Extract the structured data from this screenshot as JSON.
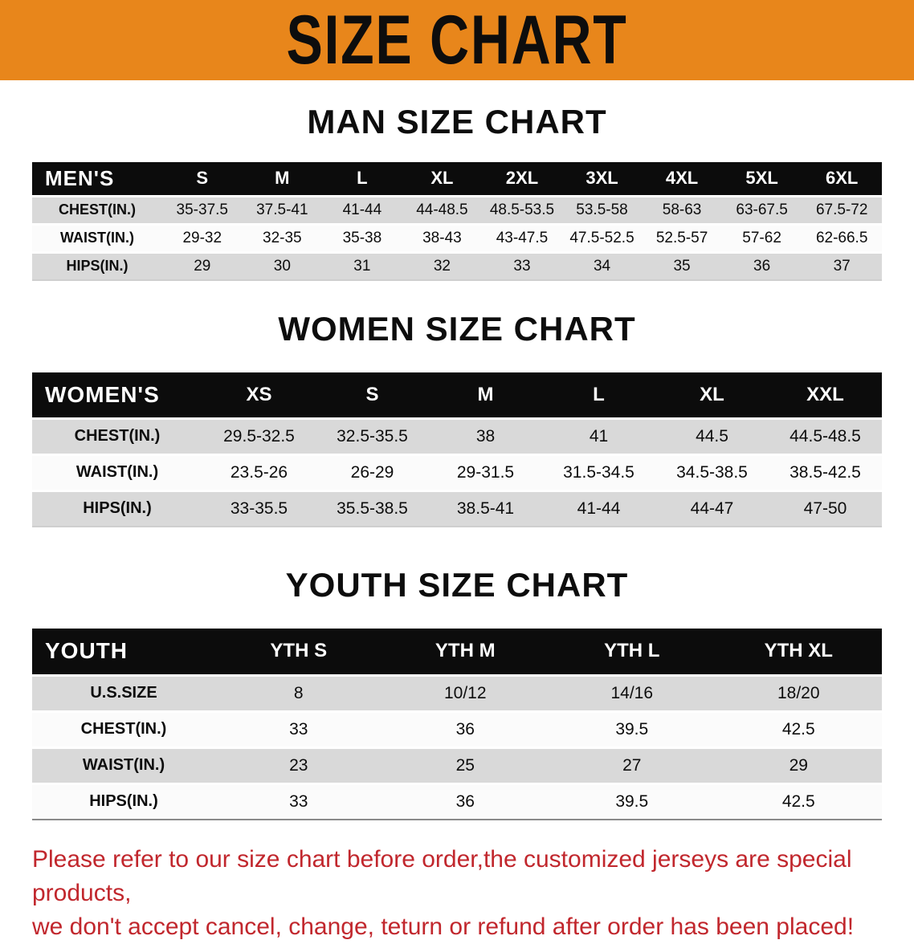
{
  "banner": {
    "title": "SIZE CHART",
    "bg_color": "#E8861B",
    "text_color": "#0D0D0D"
  },
  "men": {
    "title": "MAN SIZE CHART",
    "header": [
      "MEN'S",
      "S",
      "M",
      "L",
      "XL",
      "2XL",
      "3XL",
      "4XL",
      "5XL",
      "6XL"
    ],
    "rows": [
      {
        "label": "CHEST(IN.)",
        "values": [
          "35-37.5",
          "37.5-41",
          "41-44",
          "44-48.5",
          "48.5-53.5",
          "53.5-58",
          "58-63",
          "63-67.5",
          "67.5-72"
        ]
      },
      {
        "label": "WAIST(IN.)",
        "values": [
          "29-32",
          "32-35",
          "35-38",
          "38-43",
          "43-47.5",
          "47.5-52.5",
          "52.5-57",
          "57-62",
          "62-66.5"
        ]
      },
      {
        "label": "HIPS(IN.)",
        "values": [
          "29",
          "30",
          "31",
          "32",
          "33",
          "34",
          "35",
          "36",
          "37"
        ]
      }
    ]
  },
  "women": {
    "title": "WOMEN SIZE CHART",
    "header": [
      "WOMEN'S",
      "XS",
      "S",
      "M",
      "L",
      "XL",
      "XXL"
    ],
    "rows": [
      {
        "label": "CHEST(IN.)",
        "values": [
          "29.5-32.5",
          "32.5-35.5",
          "38",
          "41",
          "44.5",
          "44.5-48.5"
        ]
      },
      {
        "label": "WAIST(IN.)",
        "values": [
          "23.5-26",
          "26-29",
          "29-31.5",
          "31.5-34.5",
          "34.5-38.5",
          "38.5-42.5"
        ]
      },
      {
        "label": "HIPS(IN.)",
        "values": [
          "33-35.5",
          "35.5-38.5",
          "38.5-41",
          "41-44",
          "44-47",
          "47-50"
        ]
      }
    ]
  },
  "youth": {
    "title": "YOUTH SIZE CHART",
    "header": [
      "YOUTH",
      "YTH S",
      "YTH M",
      "YTH L",
      "YTH XL"
    ],
    "rows": [
      {
        "label": "U.S.SIZE",
        "values": [
          "8",
          "10/12",
          "14/16",
          "18/20"
        ]
      },
      {
        "label": "CHEST(IN.)",
        "values": [
          "33",
          "36",
          "39.5",
          "42.5"
        ]
      },
      {
        "label": "WAIST(IN.)",
        "values": [
          "23",
          "25",
          "27",
          "29"
        ]
      },
      {
        "label": "HIPS(IN.)",
        "values": [
          "33",
          "36",
          "39.5",
          "42.5"
        ]
      }
    ]
  },
  "table_colors": {
    "header_bg": "#0C0C0C",
    "header_text": "#FFFFFF",
    "stripe_row_bg": "#D9D9D9"
  },
  "disclaimer": {
    "line1": "Please refer to our size chart before order,the customized jerseys are special products,",
    "line2": "we don't accept cancel, change, teturn or refund after order has been placed!",
    "color": "#C1272D"
  }
}
